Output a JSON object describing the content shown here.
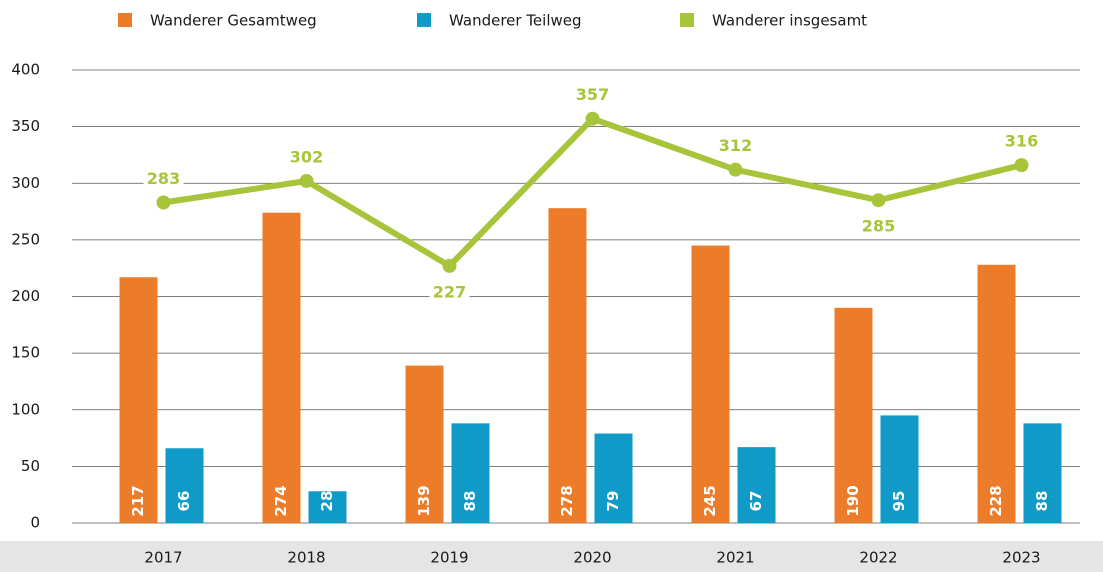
{
  "chart_data": {
    "type": "bar+line",
    "categories": [
      "2017",
      "2018",
      "2019",
      "2020",
      "2021",
      "2022",
      "2023"
    ],
    "series": [
      {
        "name": "Wanderer Gesamtweg",
        "color": "#ec7c2a",
        "type": "bar",
        "values": [
          217,
          274,
          139,
          278,
          245,
          190,
          228
        ]
      },
      {
        "name": "Wanderer Teilweg",
        "color": "#0f9ac8",
        "type": "bar",
        "values": [
          66,
          28,
          88,
          79,
          67,
          95,
          88
        ]
      },
      {
        "name": "Wanderer insgesamt",
        "color": "#a8c43a",
        "type": "line",
        "values": [
          283,
          302,
          227,
          357,
          312,
          285,
          316
        ]
      }
    ],
    "ylim": [
      0,
      400
    ],
    "yticks": [
      0,
      50,
      100,
      150,
      200,
      250,
      300,
      350,
      400
    ],
    "grid": true,
    "legend": "top"
  }
}
